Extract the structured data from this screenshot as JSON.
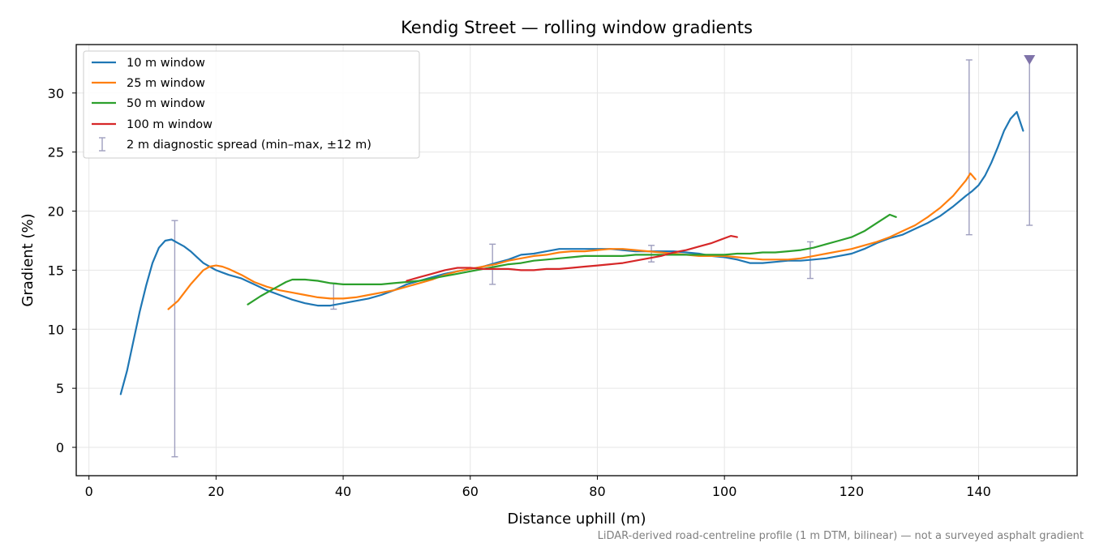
{
  "chart_data": {
    "type": "line",
    "title": "Kendig Street — rolling window gradients",
    "xlabel": "Distance uphill (m)",
    "ylabel": "Gradient (%)",
    "footnote": "LiDAR-derived road-centreline profile (1 m DTM, bilinear) — not a surveyed asphalt gradient",
    "xlim": [
      -2,
      155.5
    ],
    "ylim": [
      -2.4,
      34.1
    ],
    "xticks": [
      0,
      20,
      40,
      60,
      80,
      100,
      120,
      140
    ],
    "yticks": [
      0,
      5,
      10,
      15,
      20,
      25,
      30
    ],
    "grid": true,
    "legend_position": "upper-left",
    "series": [
      {
        "name": "10 m window",
        "color": "#1f77b4",
        "x": [
          5,
          6,
          7,
          8,
          9,
          10,
          11,
          12,
          13,
          14,
          15,
          16,
          17,
          18,
          19,
          20,
          21,
          22,
          24,
          26,
          28,
          30,
          32,
          34,
          36,
          38,
          40,
          42,
          44,
          46,
          48,
          50,
          52,
          54,
          56,
          58,
          60,
          62,
          64,
          66,
          68,
          70,
          72,
          74,
          76,
          78,
          80,
          82,
          84,
          86,
          88,
          90,
          92,
          94,
          96,
          98,
          100,
          102,
          104,
          106,
          108,
          110,
          112,
          114,
          116,
          118,
          120,
          122,
          124,
          126,
          128,
          130,
          132,
          134,
          136,
          138,
          139,
          140,
          141,
          142,
          143,
          144,
          145,
          146,
          147
        ],
        "y": [
          4.5,
          6.5,
          9.0,
          11.5,
          13.7,
          15.6,
          16.9,
          17.5,
          17.6,
          17.3,
          17.0,
          16.6,
          16.1,
          15.6,
          15.3,
          15.0,
          14.8,
          14.6,
          14.3,
          13.8,
          13.3,
          12.9,
          12.5,
          12.2,
          12.0,
          12.0,
          12.2,
          12.4,
          12.6,
          12.9,
          13.3,
          13.8,
          14.1,
          14.4,
          14.7,
          14.9,
          15.1,
          15.3,
          15.6,
          15.9,
          16.3,
          16.4,
          16.6,
          16.8,
          16.8,
          16.8,
          16.8,
          16.8,
          16.7,
          16.6,
          16.6,
          16.6,
          16.6,
          16.5,
          16.4,
          16.2,
          16.1,
          15.9,
          15.6,
          15.6,
          15.7,
          15.8,
          15.8,
          15.9,
          16.0,
          16.2,
          16.4,
          16.8,
          17.3,
          17.7,
          18.0,
          18.5,
          19.0,
          19.6,
          20.4,
          21.3,
          21.7,
          22.2,
          23.0,
          24.1,
          25.4,
          26.8,
          27.8,
          28.4,
          26.8
        ]
      },
      {
        "name": "25 m window",
        "color": "#ff7f0e",
        "x": [
          12.5,
          14,
          16,
          18,
          19,
          20,
          21,
          22,
          24,
          26,
          28,
          30,
          32,
          34,
          36,
          38,
          40,
          42,
          44,
          46,
          48,
          50,
          52,
          54,
          56,
          58,
          60,
          62,
          64,
          66,
          68,
          70,
          72,
          74,
          76,
          78,
          80,
          82,
          84,
          86,
          88,
          90,
          92,
          94,
          96,
          98,
          100,
          102,
          104,
          106,
          108,
          110,
          112,
          114,
          116,
          118,
          120,
          122,
          124,
          126,
          128,
          130,
          132,
          134,
          136,
          138,
          138.7,
          139.5
        ],
        "y": [
          11.7,
          12.4,
          13.8,
          15.0,
          15.3,
          15.4,
          15.3,
          15.1,
          14.6,
          14.0,
          13.6,
          13.3,
          13.1,
          12.9,
          12.7,
          12.6,
          12.6,
          12.7,
          12.9,
          13.1,
          13.3,
          13.6,
          13.9,
          14.2,
          14.6,
          14.9,
          15.1,
          15.3,
          15.5,
          15.8,
          16.0,
          16.2,
          16.3,
          16.5,
          16.6,
          16.6,
          16.7,
          16.8,
          16.8,
          16.7,
          16.6,
          16.5,
          16.4,
          16.3,
          16.2,
          16.2,
          16.2,
          16.1,
          16.0,
          15.9,
          15.9,
          15.9,
          16.0,
          16.2,
          16.4,
          16.6,
          16.8,
          17.1,
          17.4,
          17.8,
          18.3,
          18.8,
          19.5,
          20.3,
          21.3,
          22.6,
          23.2,
          22.7
        ]
      },
      {
        "name": "50 m window",
        "color": "#2ca02c",
        "x": [
          25,
          27,
          29,
          31,
          32,
          33,
          34,
          36,
          38,
          40,
          42,
          44,
          46,
          48,
          50,
          52,
          54,
          56,
          58,
          60,
          62,
          64,
          66,
          68,
          70,
          72,
          74,
          76,
          78,
          80,
          82,
          84,
          86,
          88,
          90,
          92,
          94,
          96,
          98,
          100,
          102,
          104,
          106,
          108,
          110,
          112,
          114,
          116,
          118,
          120,
          122,
          124,
          126,
          127
        ],
        "y": [
          12.1,
          12.8,
          13.4,
          14.0,
          14.2,
          14.2,
          14.2,
          14.1,
          13.9,
          13.8,
          13.8,
          13.8,
          13.8,
          13.9,
          14.0,
          14.1,
          14.3,
          14.5,
          14.7,
          14.9,
          15.1,
          15.3,
          15.5,
          15.6,
          15.8,
          15.9,
          16.0,
          16.1,
          16.2,
          16.2,
          16.2,
          16.2,
          16.3,
          16.3,
          16.3,
          16.3,
          16.3,
          16.3,
          16.3,
          16.3,
          16.4,
          16.4,
          16.5,
          16.5,
          16.6,
          16.7,
          16.9,
          17.2,
          17.5,
          17.8,
          18.3,
          19.0,
          19.7,
          19.5
        ]
      },
      {
        "name": "100 m window",
        "color": "#d62728",
        "x": [
          50,
          52,
          54,
          56,
          57,
          58,
          60,
          62,
          64,
          66,
          68,
          70,
          72,
          74,
          76,
          78,
          80,
          82,
          84,
          86,
          88,
          90,
          92,
          94,
          96,
          98,
          100,
          101,
          102
        ],
        "y": [
          14.1,
          14.4,
          14.7,
          15.0,
          15.1,
          15.2,
          15.2,
          15.1,
          15.1,
          15.1,
          15.0,
          15.0,
          15.1,
          15.1,
          15.2,
          15.3,
          15.4,
          15.5,
          15.6,
          15.8,
          16.0,
          16.2,
          16.5,
          16.7,
          17.0,
          17.3,
          17.7,
          17.9,
          17.8
        ]
      }
    ],
    "diagnostic_spread": {
      "name": "2 m diagnostic spread (min–max, ±12 m)",
      "color": "#9f9fbf",
      "x": [
        13.5,
        38.5,
        63.5,
        88.5,
        113.5,
        138.5
      ],
      "low": [
        -0.8,
        11.7,
        13.8,
        15.7,
        14.3,
        18.0
      ],
      "high": [
        19.2,
        13.9,
        17.2,
        17.1,
        17.4,
        32.8
      ]
    },
    "clipped_spread": {
      "x": 148,
      "low": 18.8,
      "high": 32.8,
      "marker": "down-triangle",
      "color": "#7f73a9"
    }
  }
}
